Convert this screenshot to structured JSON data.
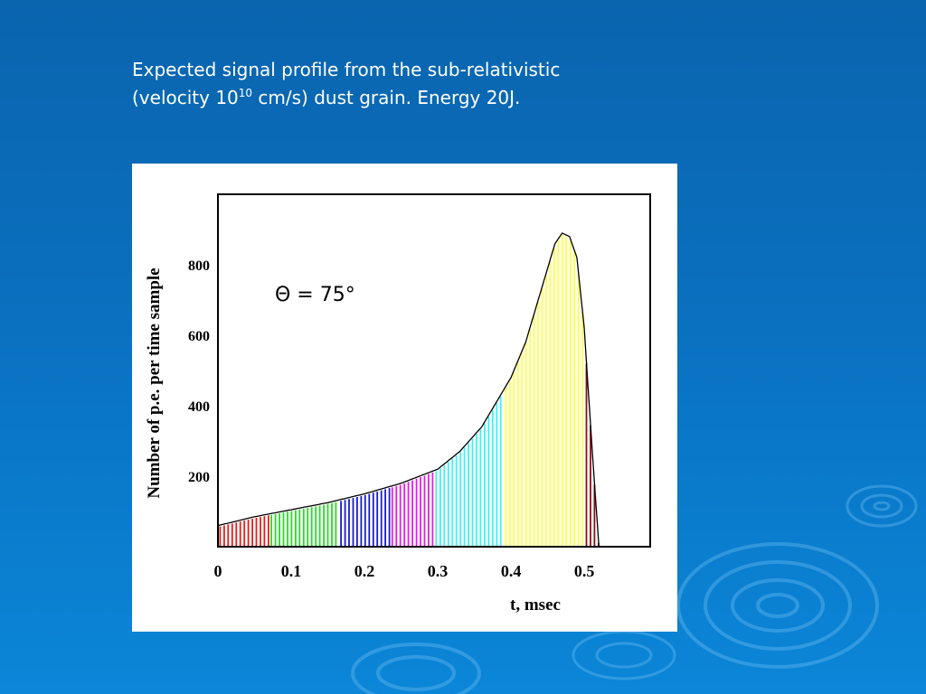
{
  "slide": {
    "caption_line1": "Expected signal profile from the sub-relativistic",
    "caption_line2_pre": "(velocity 10",
    "caption_line2_sup": "10",
    "caption_line2_post": " cm/s) dust grain. Energy 20J."
  },
  "colors": {
    "background": "#0a70bf",
    "segments": [
      "#e01e1e",
      "#22dd22",
      "#1a1acc",
      "#e020e0",
      "#44eeee",
      "#ffff44",
      "#8b1010"
    ]
  },
  "chart_data": {
    "type": "area",
    "annotation": "Θ = 75°",
    "xlabel": "t, msec",
    "ylabel": "Number of p.e. per time sample",
    "xlim": [
      0,
      0.59
    ],
    "ylim": [
      0,
      1000
    ],
    "xticks": [
      "0",
      "0.1",
      "0.2",
      "0.3",
      "0.4",
      "0.5"
    ],
    "yticks": [
      "200",
      "400",
      "600",
      "800"
    ],
    "curve": {
      "x": [
        0,
        0.05,
        0.1,
        0.15,
        0.2,
        0.25,
        0.3,
        0.33,
        0.36,
        0.38,
        0.4,
        0.42,
        0.44,
        0.46,
        0.47,
        0.48,
        0.49,
        0.5,
        0.51,
        0.52
      ],
      "y": [
        60,
        85,
        105,
        125,
        150,
        180,
        220,
        270,
        340,
        410,
        480,
        580,
        720,
        860,
        890,
        880,
        820,
        620,
        300,
        0
      ]
    },
    "segments": [
      {
        "from": 0,
        "to": 0.07
      },
      {
        "from": 0.07,
        "to": 0.165
      },
      {
        "from": 0.165,
        "to": 0.235
      },
      {
        "from": 0.235,
        "to": 0.295
      },
      {
        "from": 0.295,
        "to": 0.39
      },
      {
        "from": 0.39,
        "to": 0.5
      },
      {
        "from": 0.5,
        "to": 0.52
      }
    ]
  }
}
